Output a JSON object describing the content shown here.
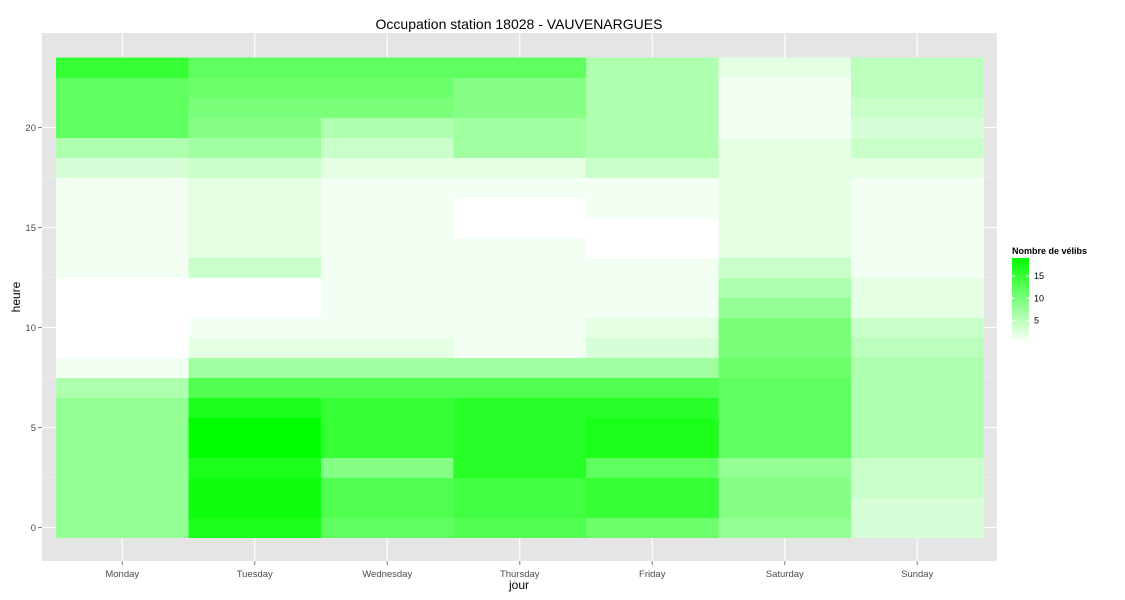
{
  "chart_data": {
    "type": "heatmap",
    "title": "Occupation station 18028 - VAUVENARGUES",
    "xlabel": "jour",
    "ylabel": "heure",
    "x_categories": [
      "Monday",
      "Tuesday",
      "Wednesday",
      "Thursday",
      "Friday",
      "Saturday",
      "Sunday"
    ],
    "y_hours": [
      0,
      1,
      2,
      3,
      4,
      5,
      6,
      7,
      8,
      9,
      10,
      11,
      12,
      13,
      14,
      15,
      16,
      17,
      18,
      19,
      20,
      21,
      22,
      23
    ],
    "y_ticks": [
      0,
      5,
      10,
      15,
      20
    ],
    "ylim": [
      -0.5,
      23.5
    ],
    "grid": true,
    "background_color": "#e5e5e5",
    "low_color": "#ffffff",
    "high_color": "#00ff00",
    "value_range": [
      0,
      19
    ],
    "legend": {
      "title": "Nombre de vélibs",
      "breaks": [
        5,
        10,
        15
      ],
      "placement": "right"
    },
    "values": [
      [
        8,
        17,
        12,
        13,
        11,
        8,
        3
      ],
      [
        8,
        18,
        13,
        14,
        15,
        9,
        3
      ],
      [
        8,
        18,
        13,
        14,
        15,
        9,
        4
      ],
      [
        8,
        17,
        9,
        16,
        12,
        8,
        4
      ],
      [
        8,
        19,
        15,
        16,
        17,
        12,
        6
      ],
      [
        8,
        19,
        15,
        16,
        17,
        12,
        6
      ],
      [
        8,
        17,
        15,
        16,
        16,
        12,
        6
      ],
      [
        6,
        13,
        13,
        13,
        13,
        12,
        6
      ],
      [
        1,
        7,
        7,
        7,
        7,
        11,
        6
      ],
      [
        0,
        2,
        2,
        1,
        3,
        10,
        5
      ],
      [
        0,
        1,
        1,
        1,
        2,
        10,
        4
      ],
      [
        0,
        0,
        1,
        1,
        1,
        8,
        2
      ],
      [
        0,
        0,
        1,
        1,
        1,
        6,
        2
      ],
      [
        1,
        4,
        1,
        1,
        1,
        4,
        1
      ],
      [
        1,
        2,
        1,
        1,
        0,
        2,
        1
      ],
      [
        1,
        2,
        1,
        0,
        0,
        2,
        1
      ],
      [
        1,
        2,
        1,
        0,
        1,
        2,
        1
      ],
      [
        1,
        2,
        1,
        1,
        1,
        2,
        1
      ],
      [
        3,
        4,
        2,
        2,
        4,
        2,
        2
      ],
      [
        6,
        7,
        4,
        7,
        6,
        2,
        4
      ],
      [
        12,
        9,
        6,
        7,
        6,
        1,
        3
      ],
      [
        12,
        10,
        10,
        9,
        6,
        1,
        4
      ],
      [
        12,
        11,
        11,
        9,
        6,
        1,
        5
      ],
      [
        15,
        12,
        12,
        12,
        6,
        2,
        5
      ]
    ]
  }
}
